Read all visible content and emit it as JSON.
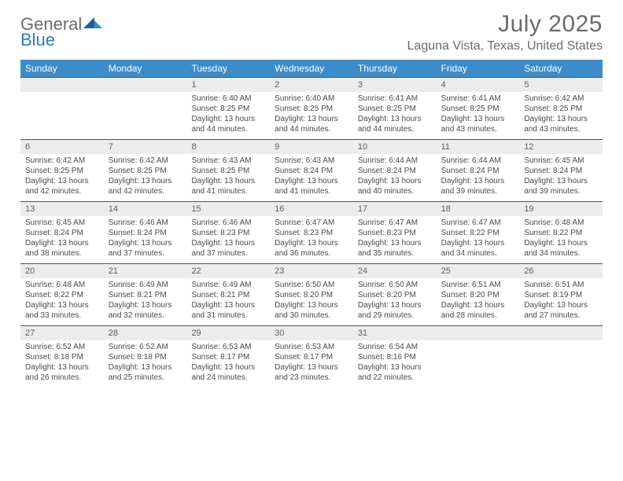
{
  "brand": {
    "line1": "General",
    "line2": "Blue",
    "gray": "#6b6b6b",
    "blue": "#2f7cc0",
    "mark_fill": "#1f5f99"
  },
  "header": {
    "month": "July 2025",
    "location": "Laguna Vista, Texas, United States"
  },
  "colors": {
    "header_bar": "#3d8bc9",
    "header_text": "#ffffff",
    "daynum_bg": "#ececec",
    "daynum_border": "#2a5f8a",
    "body_text": "#4a4a4a",
    "title_gray": "#6b6b6b"
  },
  "weekdays": [
    "Sunday",
    "Monday",
    "Tuesday",
    "Wednesday",
    "Thursday",
    "Friday",
    "Saturday"
  ],
  "weeks": [
    [
      {
        "day": "",
        "sunrise": "",
        "sunset": "",
        "daylight": ""
      },
      {
        "day": "",
        "sunrise": "",
        "sunset": "",
        "daylight": ""
      },
      {
        "day": "1",
        "sunrise": "Sunrise: 6:40 AM",
        "sunset": "Sunset: 8:25 PM",
        "daylight": "Daylight: 13 hours and 44 minutes."
      },
      {
        "day": "2",
        "sunrise": "Sunrise: 6:40 AM",
        "sunset": "Sunset: 8:25 PM",
        "daylight": "Daylight: 13 hours and 44 minutes."
      },
      {
        "day": "3",
        "sunrise": "Sunrise: 6:41 AM",
        "sunset": "Sunset: 8:25 PM",
        "daylight": "Daylight: 13 hours and 44 minutes."
      },
      {
        "day": "4",
        "sunrise": "Sunrise: 6:41 AM",
        "sunset": "Sunset: 8:25 PM",
        "daylight": "Daylight: 13 hours and 43 minutes."
      },
      {
        "day": "5",
        "sunrise": "Sunrise: 6:42 AM",
        "sunset": "Sunset: 8:25 PM",
        "daylight": "Daylight: 13 hours and 43 minutes."
      }
    ],
    [
      {
        "day": "6",
        "sunrise": "Sunrise: 6:42 AM",
        "sunset": "Sunset: 8:25 PM",
        "daylight": "Daylight: 13 hours and 42 minutes."
      },
      {
        "day": "7",
        "sunrise": "Sunrise: 6:42 AM",
        "sunset": "Sunset: 8:25 PM",
        "daylight": "Daylight: 13 hours and 42 minutes."
      },
      {
        "day": "8",
        "sunrise": "Sunrise: 6:43 AM",
        "sunset": "Sunset: 8:25 PM",
        "daylight": "Daylight: 13 hours and 41 minutes."
      },
      {
        "day": "9",
        "sunrise": "Sunrise: 6:43 AM",
        "sunset": "Sunset: 8:24 PM",
        "daylight": "Daylight: 13 hours and 41 minutes."
      },
      {
        "day": "10",
        "sunrise": "Sunrise: 6:44 AM",
        "sunset": "Sunset: 8:24 PM",
        "daylight": "Daylight: 13 hours and 40 minutes."
      },
      {
        "day": "11",
        "sunrise": "Sunrise: 6:44 AM",
        "sunset": "Sunset: 8:24 PM",
        "daylight": "Daylight: 13 hours and 39 minutes."
      },
      {
        "day": "12",
        "sunrise": "Sunrise: 6:45 AM",
        "sunset": "Sunset: 8:24 PM",
        "daylight": "Daylight: 13 hours and 39 minutes."
      }
    ],
    [
      {
        "day": "13",
        "sunrise": "Sunrise: 6:45 AM",
        "sunset": "Sunset: 8:24 PM",
        "daylight": "Daylight: 13 hours and 38 minutes."
      },
      {
        "day": "14",
        "sunrise": "Sunrise: 6:46 AM",
        "sunset": "Sunset: 8:24 PM",
        "daylight": "Daylight: 13 hours and 37 minutes."
      },
      {
        "day": "15",
        "sunrise": "Sunrise: 6:46 AM",
        "sunset": "Sunset: 8:23 PM",
        "daylight": "Daylight: 13 hours and 37 minutes."
      },
      {
        "day": "16",
        "sunrise": "Sunrise: 6:47 AM",
        "sunset": "Sunset: 8:23 PM",
        "daylight": "Daylight: 13 hours and 36 minutes."
      },
      {
        "day": "17",
        "sunrise": "Sunrise: 6:47 AM",
        "sunset": "Sunset: 8:23 PM",
        "daylight": "Daylight: 13 hours and 35 minutes."
      },
      {
        "day": "18",
        "sunrise": "Sunrise: 6:47 AM",
        "sunset": "Sunset: 8:22 PM",
        "daylight": "Daylight: 13 hours and 34 minutes."
      },
      {
        "day": "19",
        "sunrise": "Sunrise: 6:48 AM",
        "sunset": "Sunset: 8:22 PM",
        "daylight": "Daylight: 13 hours and 34 minutes."
      }
    ],
    [
      {
        "day": "20",
        "sunrise": "Sunrise: 6:48 AM",
        "sunset": "Sunset: 8:22 PM",
        "daylight": "Daylight: 13 hours and 33 minutes."
      },
      {
        "day": "21",
        "sunrise": "Sunrise: 6:49 AM",
        "sunset": "Sunset: 8:21 PM",
        "daylight": "Daylight: 13 hours and 32 minutes."
      },
      {
        "day": "22",
        "sunrise": "Sunrise: 6:49 AM",
        "sunset": "Sunset: 8:21 PM",
        "daylight": "Daylight: 13 hours and 31 minutes."
      },
      {
        "day": "23",
        "sunrise": "Sunrise: 6:50 AM",
        "sunset": "Sunset: 8:20 PM",
        "daylight": "Daylight: 13 hours and 30 minutes."
      },
      {
        "day": "24",
        "sunrise": "Sunrise: 6:50 AM",
        "sunset": "Sunset: 8:20 PM",
        "daylight": "Daylight: 13 hours and 29 minutes."
      },
      {
        "day": "25",
        "sunrise": "Sunrise: 6:51 AM",
        "sunset": "Sunset: 8:20 PM",
        "daylight": "Daylight: 13 hours and 28 minutes."
      },
      {
        "day": "26",
        "sunrise": "Sunrise: 6:51 AM",
        "sunset": "Sunset: 8:19 PM",
        "daylight": "Daylight: 13 hours and 27 minutes."
      }
    ],
    [
      {
        "day": "27",
        "sunrise": "Sunrise: 6:52 AM",
        "sunset": "Sunset: 8:18 PM",
        "daylight": "Daylight: 13 hours and 26 minutes."
      },
      {
        "day": "28",
        "sunrise": "Sunrise: 6:52 AM",
        "sunset": "Sunset: 8:18 PM",
        "daylight": "Daylight: 13 hours and 25 minutes."
      },
      {
        "day": "29",
        "sunrise": "Sunrise: 6:53 AM",
        "sunset": "Sunset: 8:17 PM",
        "daylight": "Daylight: 13 hours and 24 minutes."
      },
      {
        "day": "30",
        "sunrise": "Sunrise: 6:53 AM",
        "sunset": "Sunset: 8:17 PM",
        "daylight": "Daylight: 13 hours and 23 minutes."
      },
      {
        "day": "31",
        "sunrise": "Sunrise: 6:54 AM",
        "sunset": "Sunset: 8:16 PM",
        "daylight": "Daylight: 13 hours and 22 minutes."
      },
      {
        "day": "",
        "sunrise": "",
        "sunset": "",
        "daylight": ""
      },
      {
        "day": "",
        "sunrise": "",
        "sunset": "",
        "daylight": ""
      }
    ]
  ]
}
